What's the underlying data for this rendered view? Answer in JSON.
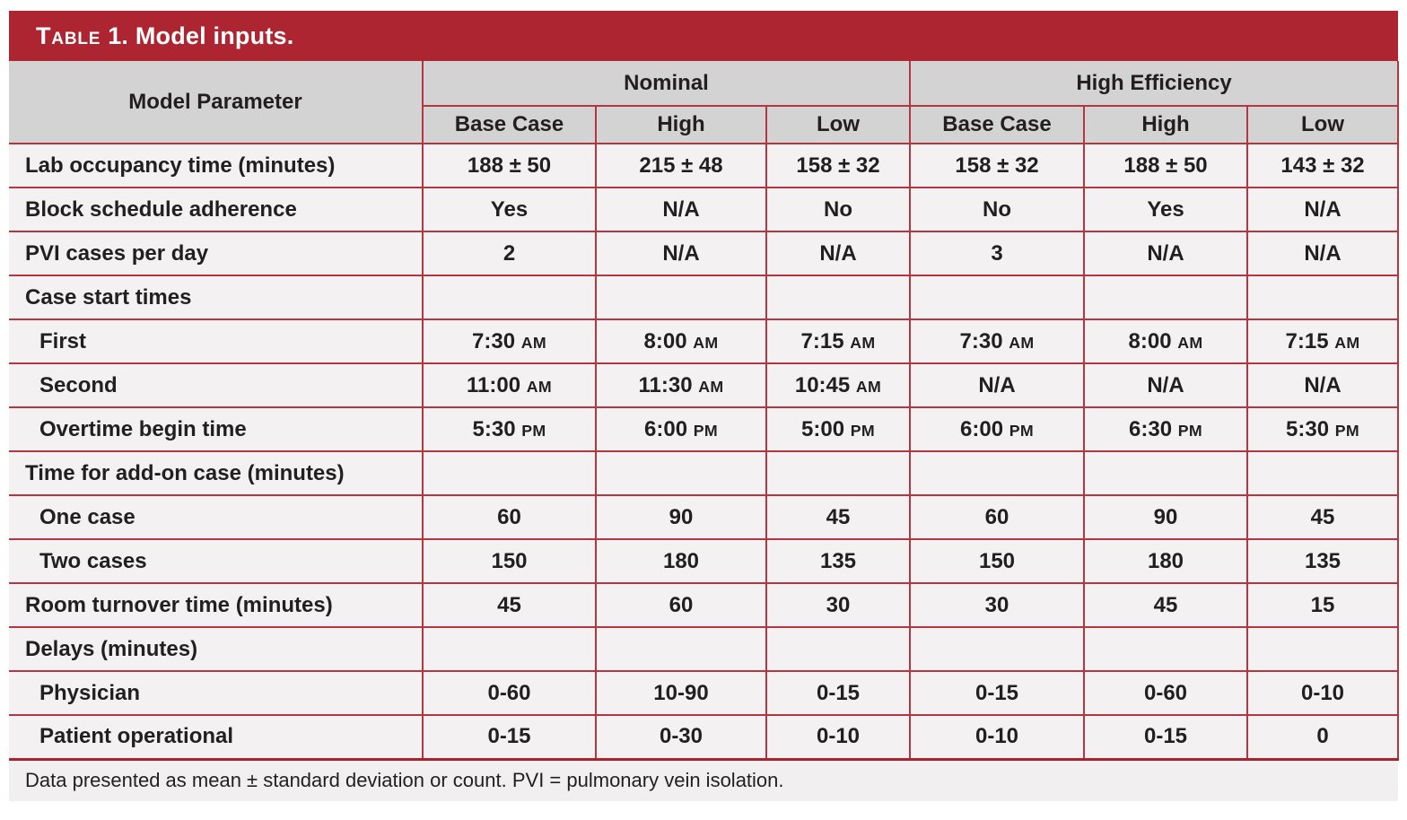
{
  "title": {
    "prefix": "Table",
    "rest": "1. Model inputs."
  },
  "colors": {
    "accent_red": "#ae2532",
    "border_red": "#b43641",
    "header_gray": "#d4d3d3",
    "row_bg": "#f3f1f1",
    "text_dark": "#231f20",
    "title_text": "#ffffff"
  },
  "table": {
    "param_header": "Model Parameter",
    "groups": [
      {
        "label": "Nominal",
        "span": 3
      },
      {
        "label": "High Efficiency",
        "span": 3
      }
    ],
    "subheaders": [
      "Base Case",
      "High",
      "Low",
      "Base Case",
      "High",
      "Low"
    ],
    "rows": [
      {
        "label": "Lab occupancy time (minutes)",
        "indent": 0,
        "values": [
          "188 ± 50",
          "215 ± 48",
          "158 ± 32",
          "158 ± 32",
          "188 ± 50",
          "143 ± 32"
        ]
      },
      {
        "label": "Block schedule adherence",
        "indent": 0,
        "values": [
          "Yes",
          "N/A",
          "No",
          "No",
          "Yes",
          "N/A"
        ]
      },
      {
        "label": "PVI cases per day",
        "indent": 0,
        "values": [
          "2",
          "N/A",
          "N/A",
          "3",
          "N/A",
          "N/A"
        ]
      },
      {
        "label": "Case start times",
        "indent": 0,
        "values": [
          "",
          "",
          "",
          "",
          "",
          ""
        ]
      },
      {
        "label": "First",
        "indent": 1,
        "values": [
          "7:30 AM",
          "8:00 AM",
          "7:15 AM",
          "7:30 AM",
          "8:00 AM",
          "7:15 AM"
        ]
      },
      {
        "label": "Second",
        "indent": 1,
        "values": [
          "11:00 AM",
          "11:30 AM",
          "10:45 AM",
          "N/A",
          "N/A",
          "N/A"
        ]
      },
      {
        "label": "Overtime begin time",
        "indent": 1,
        "values": [
          "5:30 PM",
          "6:00 PM",
          "5:00 PM",
          "6:00 PM",
          "6:30 PM",
          "5:30 PM"
        ]
      },
      {
        "label": "Time for add-on case (minutes)",
        "indent": 0,
        "values": [
          "",
          "",
          "",
          "",
          "",
          ""
        ]
      },
      {
        "label": "One case",
        "indent": 1,
        "values": [
          "60",
          "90",
          "45",
          "60",
          "90",
          "45"
        ]
      },
      {
        "label": "Two cases",
        "indent": 1,
        "values": [
          "150",
          "180",
          "135",
          "150",
          "180",
          "135"
        ]
      },
      {
        "label": "Room turnover time (minutes)",
        "indent": 0,
        "values": [
          "45",
          "60",
          "30",
          "30",
          "45",
          "15"
        ]
      },
      {
        "label": "Delays (minutes)",
        "indent": 0,
        "values": [
          "",
          "",
          "",
          "",
          "",
          ""
        ]
      },
      {
        "label": "Physician",
        "indent": 1,
        "values": [
          "0-60",
          "10-90",
          "0-15",
          "0-15",
          "0-60",
          "0-10"
        ]
      },
      {
        "label": "Patient operational",
        "indent": 1,
        "values": [
          "0-15",
          "0-30",
          "0-10",
          "0-10",
          "0-15",
          "0"
        ]
      }
    ]
  },
  "footnote": "Data presented as mean ± standard deviation or count. PVI = pulmonary vein isolation."
}
